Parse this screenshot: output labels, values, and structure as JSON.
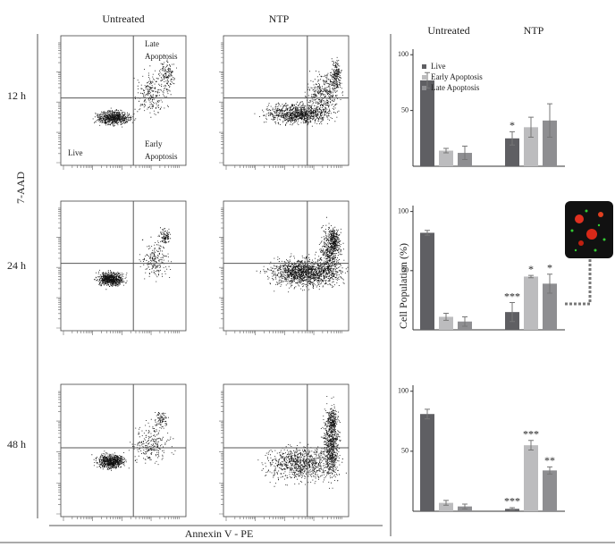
{
  "figure": {
    "column_labels": [
      "Untreated",
      "NTP"
    ],
    "row_labels": [
      "12 h",
      "24 h",
      "48 h"
    ],
    "y_axis_label": "7-AAD",
    "x_axis_label": "Annexin V - PE",
    "quadrant_labels": {
      "late": [
        "Late",
        "Apoptosis"
      ],
      "live": "Live",
      "early": [
        "Early",
        "Apoptosis"
      ]
    },
    "bar_y_axis_label": "Cell Population (%)"
  },
  "chart_data": [
    {
      "type": "bar",
      "categories": [
        "Untreated",
        "NTP"
      ],
      "ylim": [
        0,
        105
      ],
      "yticks": [
        50,
        100
      ],
      "legend": "top-left",
      "series": [
        {
          "name": "Live",
          "color": "#5f5f63",
          "values": [
            77,
            25
          ],
          "errors": [
            7,
            6
          ],
          "stars": [
            null,
            "*"
          ]
        },
        {
          "name": "Early Apoptosis",
          "color": "#bcbcbe",
          "values": [
            14,
            35
          ],
          "errors": [
            2,
            9
          ],
          "stars": [
            null,
            null
          ]
        },
        {
          "name": "Late Apoptosis",
          "color": "#8e8e91",
          "values": [
            12,
            41
          ],
          "errors": [
            6,
            15
          ],
          "stars": [
            null,
            null
          ]
        }
      ]
    },
    {
      "type": "bar",
      "categories": [
        null,
        null
      ],
      "ylim": [
        0,
        105
      ],
      "yticks": [
        50,
        100
      ],
      "series": [
        {
          "color": "#5f5f63",
          "values": [
            82,
            15
          ],
          "errors": [
            2,
            8
          ],
          "stars": [
            null,
            "***"
          ]
        },
        {
          "color": "#bcbcbe",
          "values": [
            11,
            45
          ],
          "errors": [
            3,
            1
          ],
          "stars": [
            null,
            "*"
          ]
        },
        {
          "color": "#8e8e91",
          "values": [
            7,
            39
          ],
          "errors": [
            4,
            8
          ],
          "stars": [
            null,
            "*"
          ]
        }
      ]
    },
    {
      "type": "bar",
      "categories": [
        null,
        null
      ],
      "ylim": [
        0,
        105
      ],
      "yticks": [
        50,
        100
      ],
      "series": [
        {
          "color": "#5f5f63",
          "values": [
            81,
            2
          ],
          "errors": [
            4,
            1
          ],
          "stars": [
            null,
            "***"
          ]
        },
        {
          "color": "#bcbcbe",
          "values": [
            7,
            55
          ],
          "errors": [
            2,
            4
          ],
          "stars": [
            null,
            "***"
          ]
        },
        {
          "color": "#8e8e91",
          "values": [
            4,
            34
          ],
          "errors": [
            2,
            3
          ],
          "stars": [
            null,
            "**"
          ]
        }
      ]
    }
  ]
}
